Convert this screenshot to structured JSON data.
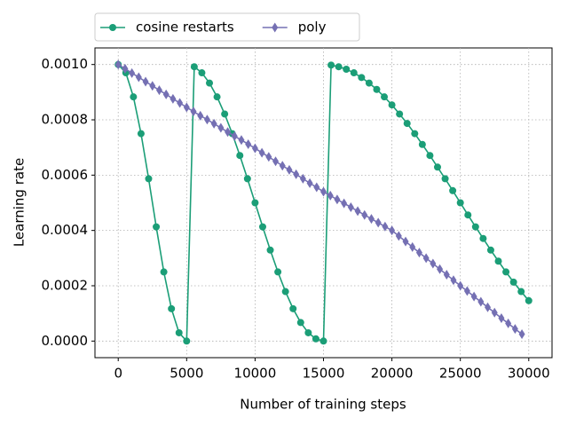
{
  "chart_data": {
    "type": "line",
    "xlabel": "Number of training steps",
    "ylabel": "Learning rate",
    "xlim": [
      -1700,
      31700
    ],
    "ylim": [
      -6e-05,
      0.00106
    ],
    "xticks": [
      0,
      5000,
      10000,
      15000,
      20000,
      25000,
      30000
    ],
    "yticks": [
      {
        "value": 0,
        "label": "0.0000"
      },
      {
        "value": 0.0002,
        "label": "0.0002"
      },
      {
        "value": 0.0004,
        "label": "0.0004"
      },
      {
        "value": 0.0006,
        "label": "0.0006"
      },
      {
        "value": 0.0008,
        "label": "0.0008"
      },
      {
        "value": 0.001,
        "label": "0.0010"
      }
    ],
    "grid": true,
    "legend": "top",
    "series": [
      {
        "name": "cosine restarts",
        "color": "#1b9e77",
        "marker": "circle",
        "x": [
          0,
          556,
          1111,
          1667,
          2222,
          2778,
          3333,
          3889,
          4444,
          5000,
          5556,
          6111,
          6667,
          7222,
          7778,
          8333,
          8889,
          9444,
          10000,
          10556,
          11111,
          11667,
          12222,
          12778,
          13333,
          13889,
          14444,
          15000,
          15556,
          16111,
          16667,
          17222,
          17778,
          18333,
          18889,
          19444,
          20000,
          20556,
          21111,
          21667,
          22222,
          22778,
          23333,
          23889,
          24444,
          25000,
          25556,
          26111,
          26667,
          27222,
          27778,
          28333,
          28889,
          29444,
          30000
        ],
        "values": [
          0.001,
          0.00097,
          0.000883,
          0.00075,
          0.000587,
          0.000413,
          0.00025,
          0.000117,
          3e-05,
          0,
          0.000992,
          0.00097,
          0.000933,
          0.000883,
          0.000821,
          0.00075,
          0.000671,
          0.000587,
          0.0005,
          0.000413,
          0.000329,
          0.00025,
          0.000179,
          0.000117,
          6.7e-05,
          3e-05,
          8e-06,
          0,
          0.000998,
          0.000992,
          0.000983,
          0.00097,
          0.000953,
          0.000933,
          0.00091,
          0.000883,
          0.000854,
          0.000821,
          0.000787,
          0.00075,
          0.000711,
          0.000671,
          0.000629,
          0.000587,
          0.000544,
          0.0005,
          0.000456,
          0.000413,
          0.000371,
          0.000329,
          0.000289,
          0.00025,
          0.000213,
          0.000179,
          0.000146
        ]
      },
      {
        "name": "poly",
        "color": "#7570b3",
        "marker": "diamond",
        "x": [
          0,
          500,
          1000,
          1500,
          2000,
          2500,
          3000,
          3500,
          4000,
          4500,
          5000,
          5500,
          6000,
          6500,
          7000,
          7500,
          8000,
          8500,
          9000,
          9500,
          10000,
          10500,
          11000,
          11500,
          12000,
          12500,
          13000,
          13500,
          14000,
          14500,
          15000,
          15500,
          16000,
          16500,
          17000,
          17500,
          18000,
          18500,
          19000,
          19500,
          20000,
          20500,
          21000,
          21500,
          22000,
          22500,
          23000,
          23500,
          24000,
          24500,
          25000,
          25500,
          26000,
          26500,
          27000,
          27500,
          28000,
          28500,
          29000,
          29500
        ],
        "values": [
          0.001,
          0.000985,
          0.000969,
          0.000954,
          0.000938,
          0.000923,
          0.000907,
          0.000892,
          0.000876,
          0.000861,
          0.000845,
          0.00083,
          0.000815,
          0.000801,
          0.000786,
          0.000771,
          0.000756,
          0.000741,
          0.000727,
          0.000712,
          0.000697,
          0.000681,
          0.000666,
          0.00065,
          0.000634,
          0.000619,
          0.000603,
          0.000587,
          0.000571,
          0.000556,
          0.00054,
          0.000526,
          0.000512,
          0.000498,
          0.000484,
          0.00047,
          0.000456,
          0.000442,
          0.000428,
          0.000414,
          0.0004,
          0.00038,
          0.00036,
          0.00034,
          0.00032,
          0.0003,
          0.00028,
          0.00026,
          0.00024,
          0.00022,
          0.0002,
          0.000181,
          0.000161,
          0.000142,
          0.000122,
          0.000103,
          8.3e-05,
          6.4e-05,
          4.4e-05,
          2.5e-05
        ]
      }
    ]
  }
}
